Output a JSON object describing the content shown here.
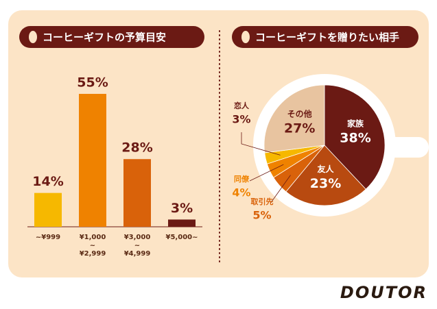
{
  "chart_data": [
    {
      "type": "bar",
      "title": "コーヒーギフトの予算目安",
      "categories": [
        "~¥999",
        "¥1,000\n~\n¥2,999",
        "¥3,000\n~\n¥4,999",
        "¥5,000~"
      ],
      "values": [
        14,
        55,
        28,
        3
      ],
      "value_labels": [
        "14%",
        "55%",
        "28%",
        "3%"
      ],
      "colors": [
        "#f6b800",
        "#ef8200",
        "#d9620a",
        "#6b1a14"
      ]
    },
    {
      "type": "pie",
      "title": "コーヒーギフトを贈りたい相手",
      "categories": [
        "家族",
        "友人",
        "取引先",
        "同僚",
        "恋人",
        "その他"
      ],
      "values": [
        38,
        23,
        5,
        4,
        3,
        27
      ],
      "value_labels": [
        "38%",
        "23%",
        "5%",
        "4%",
        "3%",
        "27%"
      ],
      "colors": [
        "#6b1a14",
        "#b84a10",
        "#d9620a",
        "#ef8200",
        "#f6b800",
        "#e8c4a0"
      ]
    }
  ],
  "brand": "DOUTOR"
}
